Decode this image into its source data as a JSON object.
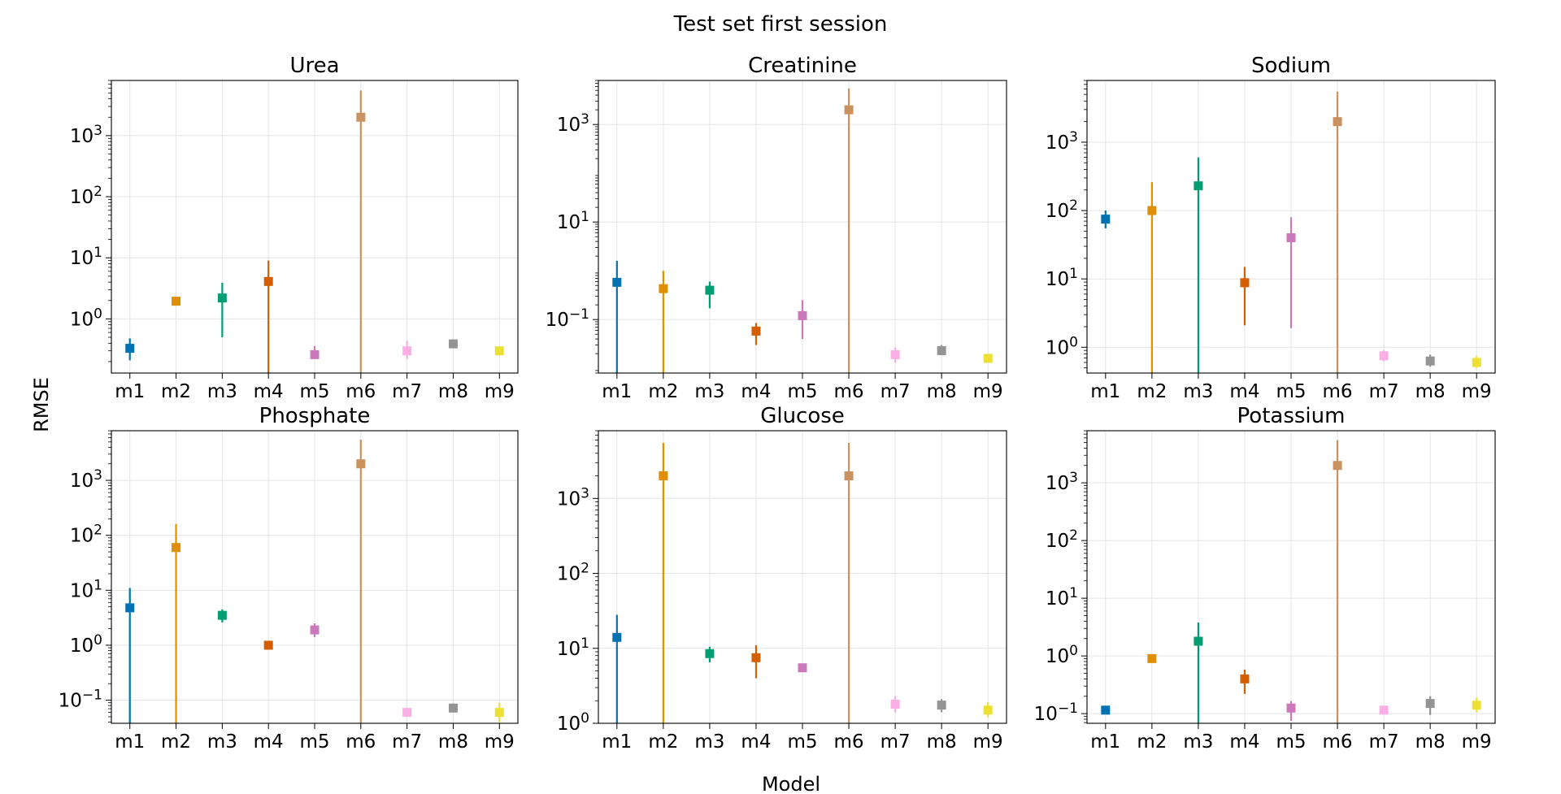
{
  "figure": {
    "suptitle": "Test set first session",
    "xlabel": "Model",
    "ylabel": "RMSE"
  },
  "models": [
    "m1",
    "m2",
    "m3",
    "m4",
    "m5",
    "m6",
    "m7",
    "m8",
    "m9"
  ],
  "colors": [
    "#0173b2",
    "#de8f05",
    "#029e73",
    "#d55e00",
    "#cc78bc",
    "#ca9161",
    "#fbafe4",
    "#949494",
    "#ece133"
  ],
  "chart_data": [
    {
      "type": "scatter",
      "title": "Urea",
      "yscale": "log",
      "ylim": [
        0.13,
        8000
      ],
      "yticks": [
        {
          "v": 1,
          "label": "10^0"
        },
        {
          "v": 10,
          "label": "10^1"
        },
        {
          "v": 100,
          "label": "10^2"
        },
        {
          "v": 1000,
          "label": "10^3"
        }
      ],
      "grid": true,
      "categories": [
        "m1",
        "m2",
        "m3",
        "m4",
        "m5",
        "m6",
        "m7",
        "m8",
        "m9"
      ],
      "values": [
        0.33,
        1.95,
        2.2,
        4.1,
        0.26,
        2000,
        0.3,
        0.39,
        0.3
      ],
      "err_low": [
        0.21,
        1.8,
        0.5,
        0.13,
        0.22,
        0.13,
        0.22,
        0.35,
        0.27
      ],
      "err_high": [
        0.48,
        2.1,
        3.9,
        9.0,
        0.36,
        5500,
        0.44,
        0.45,
        0.34
      ]
    },
    {
      "type": "scatter",
      "title": "Creatinine",
      "yscale": "log",
      "ylim": [
        0.008,
        8000
      ],
      "yticks": [
        {
          "v": 0.1,
          "label": "10^−1"
        },
        {
          "v": 10,
          "label": "10^1"
        },
        {
          "v": 1000,
          "label": "10^3"
        }
      ],
      "grid": true,
      "categories": [
        "m1",
        "m2",
        "m3",
        "m4",
        "m5",
        "m6",
        "m7",
        "m8",
        "m9"
      ],
      "values": [
        0.58,
        0.43,
        0.4,
        0.058,
        0.12,
        2000,
        0.019,
        0.023,
        0.016
      ],
      "err_low": [
        0.008,
        0.008,
        0.17,
        0.03,
        0.04,
        0.008,
        0.013,
        0.019,
        0.013
      ],
      "err_high": [
        1.6,
        1.0,
        0.6,
        0.085,
        0.25,
        5500,
        0.027,
        0.03,
        0.019
      ]
    },
    {
      "type": "scatter",
      "title": "Sodium",
      "yscale": "log",
      "ylim": [
        0.42,
        8000
      ],
      "yticks": [
        {
          "v": 1,
          "label": "10^0"
        },
        {
          "v": 10,
          "label": "10^1"
        },
        {
          "v": 100,
          "label": "10^2"
        },
        {
          "v": 1000,
          "label": "10^3"
        }
      ],
      "grid": true,
      "categories": [
        "m1",
        "m2",
        "m3",
        "m4",
        "m5",
        "m6",
        "m7",
        "m8",
        "m9"
      ],
      "values": [
        75,
        100,
        230,
        8.8,
        40,
        2000,
        0.75,
        0.63,
        0.6
      ],
      "err_low": [
        55,
        0.42,
        0.42,
        2.1,
        1.9,
        0.42,
        0.62,
        0.52,
        0.5
      ],
      "err_high": [
        100,
        260,
        600,
        15,
        80,
        5500,
        0.9,
        0.78,
        0.74
      ]
    },
    {
      "type": "scatter",
      "title": "Phosphate",
      "yscale": "log",
      "ylim": [
        0.038,
        8000
      ],
      "yticks": [
        {
          "v": 0.1,
          "label": "10^−1"
        },
        {
          "v": 1,
          "label": "10^0"
        },
        {
          "v": 10,
          "label": "10^1"
        },
        {
          "v": 100,
          "label": "10^2"
        },
        {
          "v": 1000,
          "label": "10^3"
        }
      ],
      "grid": true,
      "categories": [
        "m1",
        "m2",
        "m3",
        "m4",
        "m5",
        "m6",
        "m7",
        "m8",
        "m9"
      ],
      "values": [
        4.8,
        60,
        3.5,
        1.0,
        1.9,
        2000,
        0.06,
        0.072,
        0.06
      ],
      "err_low": [
        0.038,
        0.038,
        2.6,
        0.95,
        1.4,
        0.038,
        0.055,
        0.06,
        0.04
      ],
      "err_high": [
        11,
        160,
        4.5,
        1.1,
        2.5,
        5500,
        0.067,
        0.085,
        0.09
      ]
    },
    {
      "type": "scatter",
      "title": "Glucose",
      "yscale": "log",
      "ylim": [
        1,
        8000
      ],
      "yticks": [
        {
          "v": 1,
          "label": "10^0"
        },
        {
          "v": 10,
          "label": "10^1"
        },
        {
          "v": 100,
          "label": "10^2"
        },
        {
          "v": 1000,
          "label": "10^3"
        }
      ],
      "grid": true,
      "categories": [
        "m1",
        "m2",
        "m3",
        "m4",
        "m5",
        "m6",
        "m7",
        "m8",
        "m9"
      ],
      "values": [
        14,
        2000,
        8.5,
        7.5,
        5.5,
        2000,
        1.8,
        1.75,
        1.5
      ],
      "err_low": [
        1,
        1,
        6.5,
        4.0,
        5.0,
        1,
        1.4,
        1.4,
        1.2
      ],
      "err_high": [
        28,
        5500,
        10.5,
        11,
        6.0,
        5500,
        2.3,
        2.1,
        1.9
      ]
    },
    {
      "type": "scatter",
      "title": "Potassium",
      "yscale": "log",
      "ylim": [
        0.068,
        8000
      ],
      "yticks": [
        {
          "v": 0.1,
          "label": "10^−1"
        },
        {
          "v": 1,
          "label": "10^0"
        },
        {
          "v": 10,
          "label": "10^1"
        },
        {
          "v": 100,
          "label": "10^2"
        },
        {
          "v": 1000,
          "label": "10^3"
        }
      ],
      "grid": true,
      "categories": [
        "m1",
        "m2",
        "m3",
        "m4",
        "m5",
        "m6",
        "m7",
        "m8",
        "m9"
      ],
      "values": [
        0.115,
        0.9,
        1.8,
        0.4,
        0.125,
        2000,
        0.115,
        0.15,
        0.14
      ],
      "err_low": [
        0.108,
        0.8,
        0.068,
        0.22,
        0.075,
        0.068,
        0.106,
        0.095,
        0.105
      ],
      "err_high": [
        0.125,
        1.0,
        3.8,
        0.58,
        0.165,
        5500,
        0.125,
        0.2,
        0.19
      ]
    }
  ]
}
